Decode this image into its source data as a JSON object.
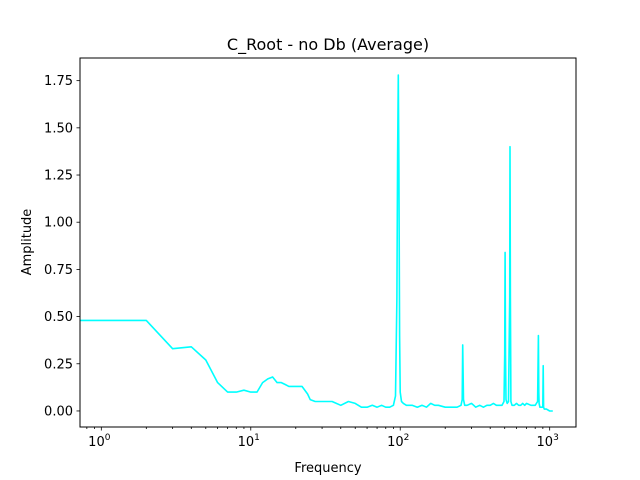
{
  "chart_data": {
    "type": "line",
    "title": "C_Root - no Db  (Average)",
    "xlabel": "Frequency",
    "ylabel": "Amplitude",
    "xscale": "log",
    "xlim": [
      0.72,
      1500
    ],
    "ylim": [
      -0.085,
      1.87
    ],
    "grid": false,
    "line_color": "#00ffff",
    "x_ticks": [
      {
        "value": 1,
        "base": "10",
        "exp": "0"
      },
      {
        "value": 10,
        "base": "10",
        "exp": "1"
      },
      {
        "value": 100,
        "base": "10",
        "exp": "2"
      },
      {
        "value": 1000,
        "base": "10",
        "exp": "3"
      }
    ],
    "y_ticks": [
      "0.00",
      "0.25",
      "0.50",
      "0.75",
      "1.00",
      "1.25",
      "1.50",
      "1.75"
    ],
    "series": [
      {
        "x": [
          0.72,
          1,
          2,
          3,
          4,
          5,
          6,
          7,
          8,
          9,
          10,
          11,
          12,
          13,
          14,
          15,
          16,
          17,
          18,
          20,
          22,
          24,
          25,
          27,
          30,
          35,
          40,
          45,
          50,
          55,
          60,
          65,
          70,
          75,
          80,
          85,
          90,
          93,
          95,
          96,
          97,
          98,
          99,
          100,
          102,
          105,
          110,
          120,
          130,
          140,
          150,
          160,
          170,
          180,
          200,
          220,
          240,
          255,
          260,
          262,
          265,
          270,
          280,
          300,
          310,
          320,
          340,
          360,
          380,
          400,
          420,
          440,
          460,
          480,
          495,
          500,
          503,
          506,
          510,
          520,
          530,
          540,
          543,
          546,
          550,
          560,
          580,
          600,
          620,
          640,
          660,
          680,
          700,
          750,
          800,
          830,
          840,
          845,
          850,
          860,
          880,
          900,
          905,
          910,
          920,
          950,
          1000,
          1050
        ],
        "y": [
          0.48,
          0.48,
          0.48,
          0.33,
          0.34,
          0.27,
          0.15,
          0.1,
          0.1,
          0.11,
          0.1,
          0.1,
          0.15,
          0.17,
          0.18,
          0.15,
          0.15,
          0.14,
          0.13,
          0.13,
          0.13,
          0.09,
          0.06,
          0.05,
          0.05,
          0.05,
          0.03,
          0.05,
          0.04,
          0.02,
          0.02,
          0.03,
          0.02,
          0.03,
          0.02,
          0.02,
          0.03,
          0.08,
          0.6,
          1.35,
          1.78,
          1.3,
          0.4,
          0.1,
          0.05,
          0.04,
          0.03,
          0.03,
          0.02,
          0.03,
          0.02,
          0.04,
          0.03,
          0.03,
          0.02,
          0.02,
          0.02,
          0.03,
          0.06,
          0.35,
          0.06,
          0.03,
          0.03,
          0.04,
          0.03,
          0.02,
          0.03,
          0.02,
          0.03,
          0.03,
          0.04,
          0.03,
          0.03,
          0.03,
          0.05,
          0.3,
          0.84,
          0.3,
          0.06,
          0.04,
          0.05,
          0.6,
          1.4,
          0.6,
          0.05,
          0.03,
          0.03,
          0.04,
          0.03,
          0.03,
          0.04,
          0.03,
          0.04,
          0.03,
          0.03,
          0.05,
          0.4,
          0.1,
          0.04,
          0.02,
          0.02,
          0.02,
          0.24,
          0.02,
          0.01,
          0.01,
          0.0,
          0.0
        ]
      }
    ]
  }
}
